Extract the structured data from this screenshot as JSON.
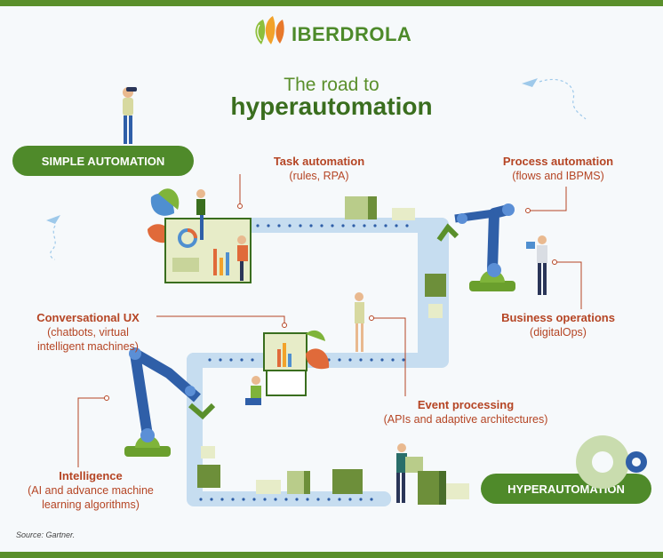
{
  "brand": {
    "name": "IBERDROLA"
  },
  "title": {
    "line1": "The road to",
    "line2": "hyperautomation"
  },
  "stages": {
    "simple": "SIMPLE AUTOMATION",
    "hyper": "HYPERAUTOMATION"
  },
  "labels": {
    "task": {
      "heading": "Task automation",
      "sub": "(rules, RPA)"
    },
    "process": {
      "heading": "Process automation",
      "sub": "(flows and IBPMS)"
    },
    "conversational": {
      "heading": "Conversational UX",
      "sub1": "(chatbots, virtual",
      "sub2": "intelligent machines)"
    },
    "business": {
      "heading": "Business operations",
      "sub": "(digitalOps)"
    },
    "event": {
      "heading": "Event processing",
      "sub": "(APIs and adaptive architectures)"
    },
    "intelligence": {
      "heading": "Intelligence",
      "sub1": "(AI and advance machine",
      "sub2": "learning algorithms)"
    }
  },
  "source": "Source: Gartner.",
  "colors": {
    "brand_green": "#5a8f2b",
    "dark_green": "#3a6e1e",
    "label_red": "#b54524",
    "belt_blue": "#c6ddf0",
    "robot_blue": "#2f5fa8"
  }
}
